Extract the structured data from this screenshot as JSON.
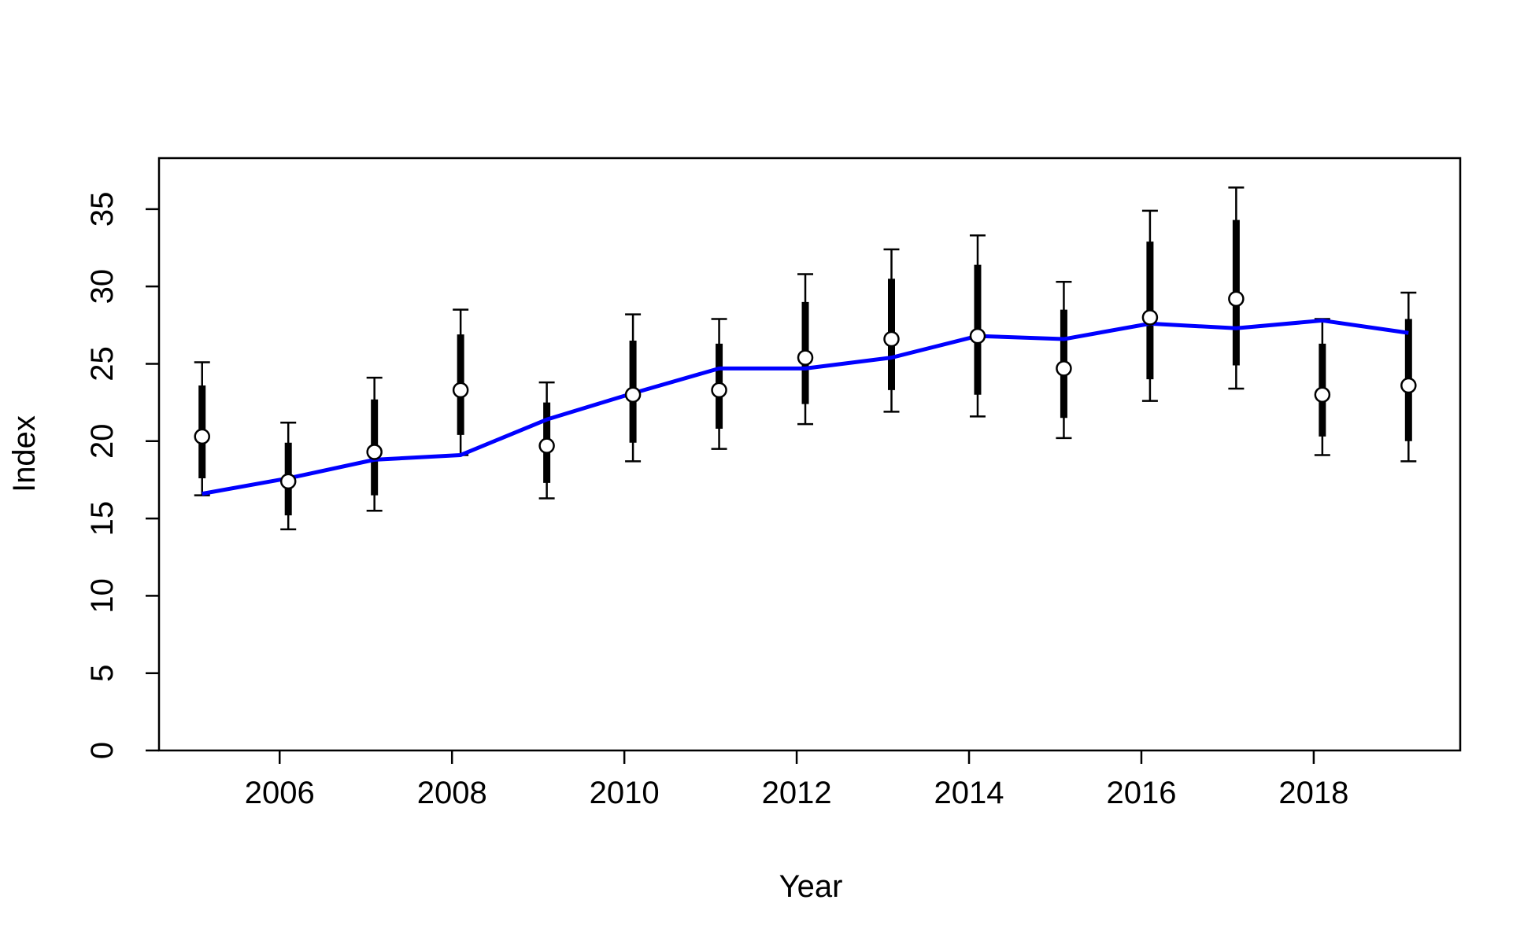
{
  "chart_data": {
    "type": "line",
    "title": "",
    "xlabel": "Year",
    "ylabel": "Index",
    "xlim": [
      2004.6,
      2019.7
    ],
    "ylim": [
      0,
      38.3
    ],
    "x_ticks": [
      2006,
      2008,
      2010,
      2012,
      2014,
      2016,
      2018
    ],
    "x_tick_labels": [
      "2006",
      "2008",
      "2010",
      "2012",
      "2014",
      "2016",
      "2018"
    ],
    "y_ticks": [
      0,
      5,
      10,
      15,
      20,
      25,
      30,
      35
    ],
    "y_tick_labels": [
      "0",
      "5",
      "10",
      "15",
      "20",
      "25",
      "30",
      "35"
    ],
    "grid": false,
    "legend": "none",
    "colors": {
      "fit_line": "#0000ff",
      "observed": "#000000",
      "marker_fill": "#ffffff",
      "axes": "#000000"
    },
    "x": [
      2005.1,
      2006.1,
      2007.1,
      2008.1,
      2009.1,
      2010.1,
      2011.1,
      2012.1,
      2013.1,
      2014.1,
      2015.1,
      2016.1,
      2017.1,
      2018.1,
      2019.1
    ],
    "series": [
      {
        "type": "errorbar",
        "marker": "open-circle",
        "values": [
          20.3,
          17.4,
          19.3,
          23.3,
          19.7,
          23.0,
          23.3,
          25.4,
          26.6,
          26.8,
          24.7,
          28.0,
          29.2,
          23.0,
          23.6
        ],
        "inner_lower": [
          17.6,
          15.2,
          16.5,
          20.4,
          17.3,
          19.9,
          20.8,
          22.4,
          23.3,
          23.0,
          21.5,
          24.0,
          24.9,
          20.3,
          20.0
        ],
        "inner_upper": [
          23.6,
          19.9,
          22.7,
          26.9,
          22.5,
          26.5,
          26.3,
          29.0,
          30.5,
          31.4,
          28.5,
          32.9,
          34.3,
          26.3,
          27.9
        ],
        "outer_lower": [
          16.5,
          14.3,
          15.5,
          19.1,
          16.3,
          18.7,
          19.5,
          21.1,
          21.9,
          21.6,
          20.2,
          22.6,
          23.4,
          19.1,
          18.7
        ],
        "outer_upper": [
          25.1,
          21.2,
          24.1,
          28.5,
          23.8,
          28.2,
          27.9,
          30.8,
          32.4,
          33.3,
          30.3,
          34.9,
          36.4,
          27.9,
          29.6
        ]
      },
      {
        "type": "line",
        "values": [
          16.6,
          17.6,
          18.8,
          19.1,
          21.4,
          23.1,
          24.7,
          24.7,
          25.4,
          26.8,
          26.6,
          27.6,
          27.3,
          27.8,
          27.0
        ]
      }
    ]
  }
}
